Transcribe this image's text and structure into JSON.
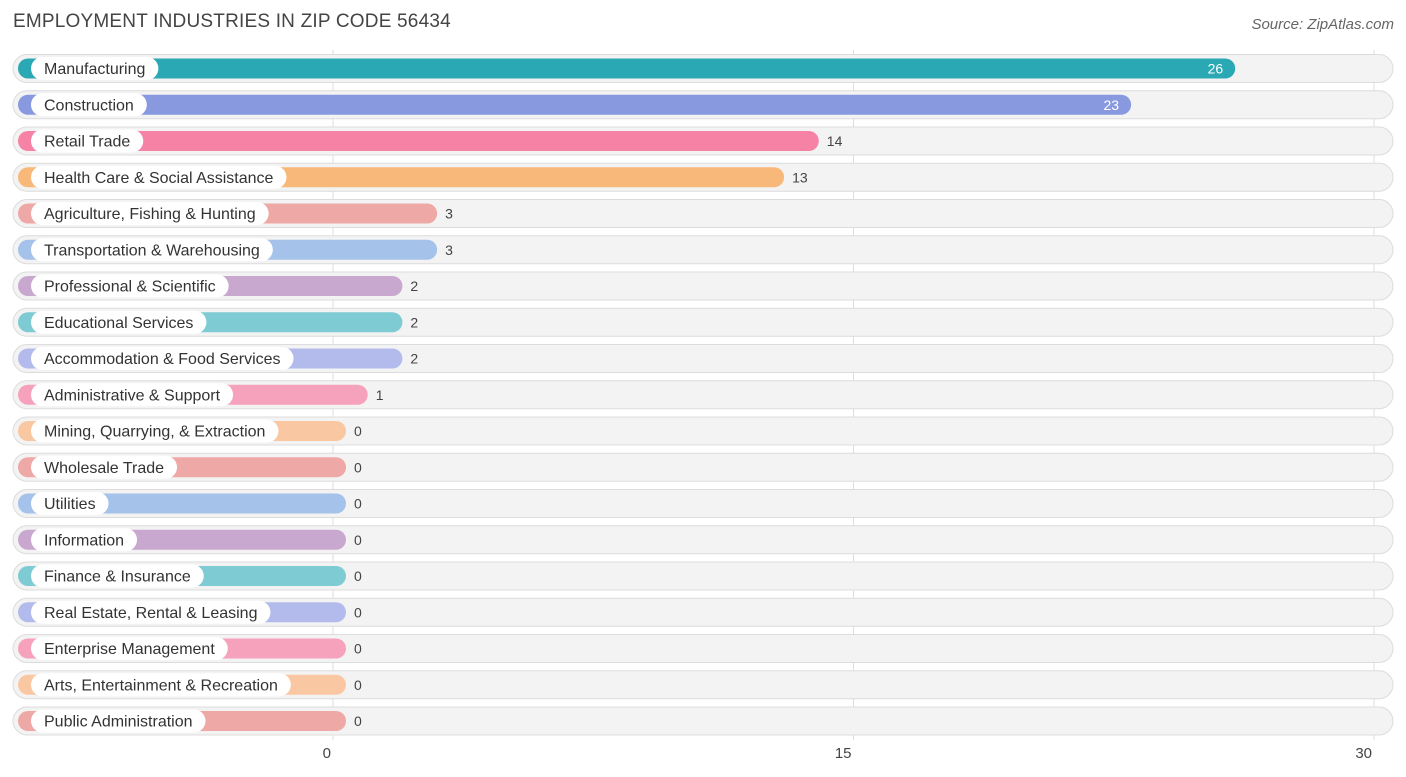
{
  "header": {
    "title": "EMPLOYMENT INDUSTRIES IN ZIP CODE 56434",
    "source": "Source: ZipAtlas.com"
  },
  "chart_data": {
    "type": "bar",
    "orientation": "horizontal",
    "title": "EMPLOYMENT INDUSTRIES IN ZIP CODE 56434",
    "xlim": [
      0,
      30
    ],
    "xticks": [
      0,
      15,
      30
    ],
    "grid": true,
    "categories": [
      "Manufacturing",
      "Construction",
      "Retail Trade",
      "Health Care & Social Assistance",
      "Agriculture, Fishing & Hunting",
      "Transportation & Warehousing",
      "Professional & Scientific",
      "Educational Services",
      "Accommodation & Food Services",
      "Administrative & Support",
      "Mining, Quarrying, & Extraction",
      "Wholesale Trade",
      "Utilities",
      "Information",
      "Finance & Insurance",
      "Real Estate, Rental & Leasing",
      "Enterprise Management",
      "Arts, Entertainment & Recreation",
      "Public Administration"
    ],
    "values": [
      26,
      23,
      14,
      13,
      3,
      3,
      2,
      2,
      2,
      1,
      0,
      0,
      0,
      0,
      0,
      0,
      0,
      0,
      0
    ],
    "colors": [
      "#2aa8b4",
      "#8899e0",
      "#f683a6",
      "#f8b87a",
      "#eea8a6",
      "#a4c2ea",
      "#c9a8cf",
      "#7ecbd3",
      "#b3bbec",
      "#f7a2bc",
      "#f9c8a2",
      "#eea8a6",
      "#a4c2ea",
      "#c9a8cf",
      "#7ecbd3",
      "#b3bbec",
      "#f7a2bc",
      "#f9c8a2",
      "#eea8a6"
    ]
  }
}
